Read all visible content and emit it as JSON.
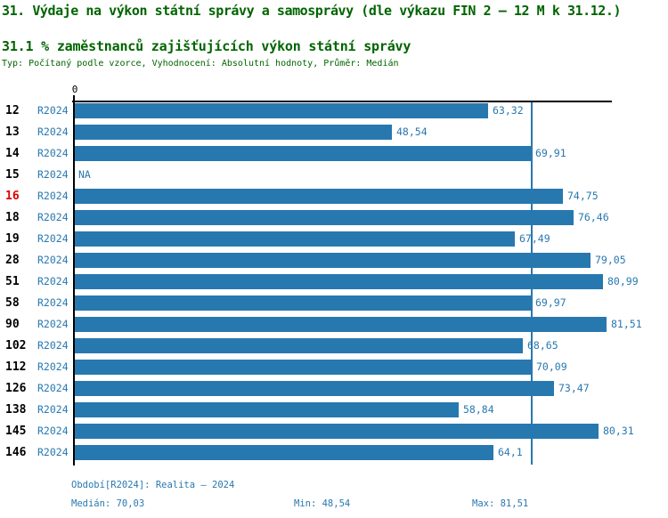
{
  "header": {
    "title": "31. Výdaje na výkon státní správy a samosprávy (dle výkazu FIN 2 – 12 M k 31.12.)",
    "subtitle": "31.1 % zaměstnanců zajišťujících výkon státní správy",
    "meta": "Typ: Počítaný podle vzorce, Vyhodnocení: Absolutní hodnoty, Průměr: Medián"
  },
  "chart_data": {
    "type": "bar",
    "orientation": "horizontal",
    "title": "31.1 % zaměstnanců zajišťujících výkon státní správy",
    "zero_tick_label": "0",
    "period_label": "R2024",
    "categories": [
      "12",
      "13",
      "14",
      "15",
      "16",
      "18",
      "19",
      "28",
      "51",
      "58",
      "90",
      "102",
      "112",
      "126",
      "138",
      "145",
      "146"
    ],
    "series": [
      {
        "name": "R2024",
        "values": [
          63.32,
          48.54,
          69.91,
          null,
          74.75,
          76.46,
          67.49,
          79.05,
          80.99,
          69.97,
          81.51,
          68.65,
          70.09,
          73.47,
          58.84,
          80.31,
          64.1
        ]
      }
    ],
    "value_labels": [
      "63,32",
      "48,54",
      "69,91",
      "NA",
      "74,75",
      "76,46",
      "67,49",
      "79,05",
      "80,99",
      "69,97",
      "81,51",
      "68,65",
      "70,09",
      "73,47",
      "58,84",
      "80,31",
      "64,1"
    ],
    "na_label": "NA",
    "highlighted_category": "16",
    "median_value": 70.03,
    "min_value": 48.54,
    "max_value": 81.51,
    "xlim": [
      0,
      82.5
    ],
    "grid": false,
    "bar_color": "#2878b0",
    "median_line_color": "#2878b0",
    "highlight_color": "#dd0000",
    "axis_color": "#000000",
    "heading_color": "#006400"
  },
  "footer": {
    "period": "Období[R2024]: Realita – 2024",
    "median": "Medián: 70,03",
    "min": "Min: 48,54",
    "max": "Max: 81,51"
  }
}
